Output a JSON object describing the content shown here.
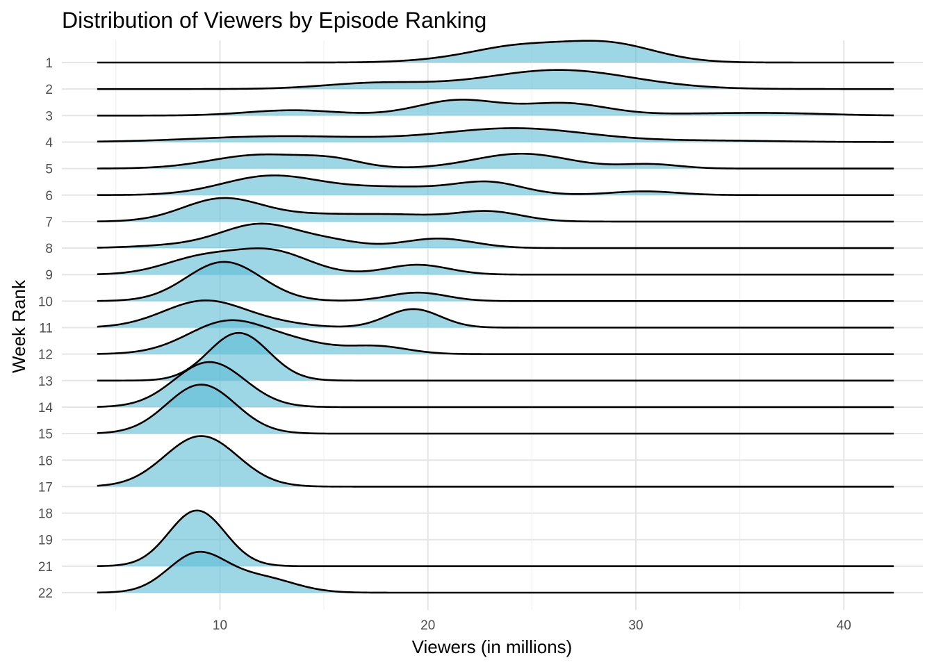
{
  "chart_data": {
    "type": "ridgeline",
    "title": "Distribution of Viewers by Episode Ranking",
    "xlabel": "Viewers (in millions)",
    "ylabel": "Week Rank",
    "xlim": [
      2.4,
      43.8
    ],
    "x_range": [
      4.1,
      42.4
    ],
    "xticks": [
      10,
      20,
      30,
      40
    ],
    "xminor": [
      5,
      15,
      25,
      35
    ],
    "yticks": [
      "1",
      "2",
      "3",
      "4",
      "5",
      "6",
      "7",
      "8",
      "9",
      "10",
      "11",
      "12",
      "13",
      "14",
      "15",
      "16",
      "17",
      "18",
      "19",
      "21",
      "22"
    ],
    "grid": true,
    "legend": "none",
    "fill_color": "#5BBCD6",
    "fill_opacity": 0.6,
    "line_color": "#000000",
    "ridges": [
      {
        "rank": "1",
        "peaks": [
          [
            24.2,
            0.55,
            2.2
          ],
          [
            28.6,
            0.72,
            2.3
          ],
          [
            20.5,
            0.06,
            2.0
          ]
        ]
      },
      {
        "rank": "2",
        "peaks": [
          [
            17.5,
            0.22,
            2.5
          ],
          [
            26.3,
            0.72,
            3.5
          ]
        ]
      },
      {
        "rank": "3",
        "peaks": [
          [
            13.5,
            0.2,
            2.2
          ],
          [
            21.5,
            0.58,
            2.0
          ],
          [
            26.6,
            0.45,
            2.0
          ],
          [
            33,
            0.06,
            3.0
          ],
          [
            37,
            0.07,
            2.5
          ]
        ]
      },
      {
        "rank": "4",
        "peaks": [
          [
            13,
            0.22,
            4.0
          ],
          [
            24.2,
            0.52,
            3.5
          ],
          [
            34,
            0.05,
            3.0
          ]
        ]
      },
      {
        "rank": "5",
        "peaks": [
          [
            12,
            0.52,
            2.4
          ],
          [
            15.5,
            0.25,
            1.4
          ],
          [
            24.5,
            0.56,
            2.3
          ],
          [
            30.7,
            0.16,
            1.4
          ]
        ]
      },
      {
        "rank": "6",
        "peaks": [
          [
            12.4,
            0.7,
            2.3
          ],
          [
            18.5,
            0.3,
            3.0
          ],
          [
            23,
            0.41,
            1.6
          ],
          [
            30.4,
            0.14,
            1.6
          ]
        ]
      },
      {
        "rank": "7",
        "peaks": [
          [
            10.1,
            0.85,
            1.9
          ],
          [
            15,
            0.26,
            2.5
          ],
          [
            19,
            0.18,
            1.8
          ],
          [
            22.9,
            0.38,
            1.6
          ]
        ]
      },
      {
        "rank": "8",
        "peaks": [
          [
            12,
            0.9,
            1.9
          ],
          [
            15.5,
            0.2,
            1.4
          ],
          [
            20.5,
            0.36,
            1.7
          ],
          [
            8,
            0.1,
            2.0
          ]
        ]
      },
      {
        "rank": "9",
        "peaks": [
          [
            9.1,
            0.62,
            1.8
          ],
          [
            12.5,
            0.85,
            1.8
          ],
          [
            19.5,
            0.37,
            1.5
          ]
        ]
      },
      {
        "rank": "10",
        "peaks": [
          [
            10.2,
            1.48,
            1.8
          ],
          [
            19.5,
            0.32,
            1.4
          ]
        ]
      },
      {
        "rank": "11",
        "peaks": [
          [
            9.3,
            1.02,
            2.0
          ],
          [
            13,
            0.1,
            1.5
          ],
          [
            19.3,
            0.7,
            1.3
          ]
        ]
      },
      {
        "rank": "12",
        "peaks": [
          [
            10.5,
            1.26,
            2.0
          ],
          [
            14,
            0.28,
            1.5
          ],
          [
            17.5,
            0.3,
            1.5
          ]
        ]
      },
      {
        "rank": "13",
        "peaks": [
          [
            10.9,
            1.8,
            1.45
          ]
        ]
      },
      {
        "rank": "14",
        "peaks": [
          [
            9.5,
            1.7,
            1.7
          ]
        ]
      },
      {
        "rank": "15",
        "peaks": [
          [
            9.1,
            1.85,
            1.65
          ]
        ]
      },
      {
        "rank": "17",
        "peaks": [
          [
            9.1,
            1.91,
            1.75
          ]
        ]
      },
      {
        "rank": "21",
        "peaks": [
          [
            8.9,
            2.1,
            1.35
          ]
        ]
      },
      {
        "rank": "22",
        "peaks": [
          [
            8.9,
            1.45,
            1.4
          ],
          [
            12,
            0.55,
            1.6
          ]
        ]
      }
    ]
  }
}
